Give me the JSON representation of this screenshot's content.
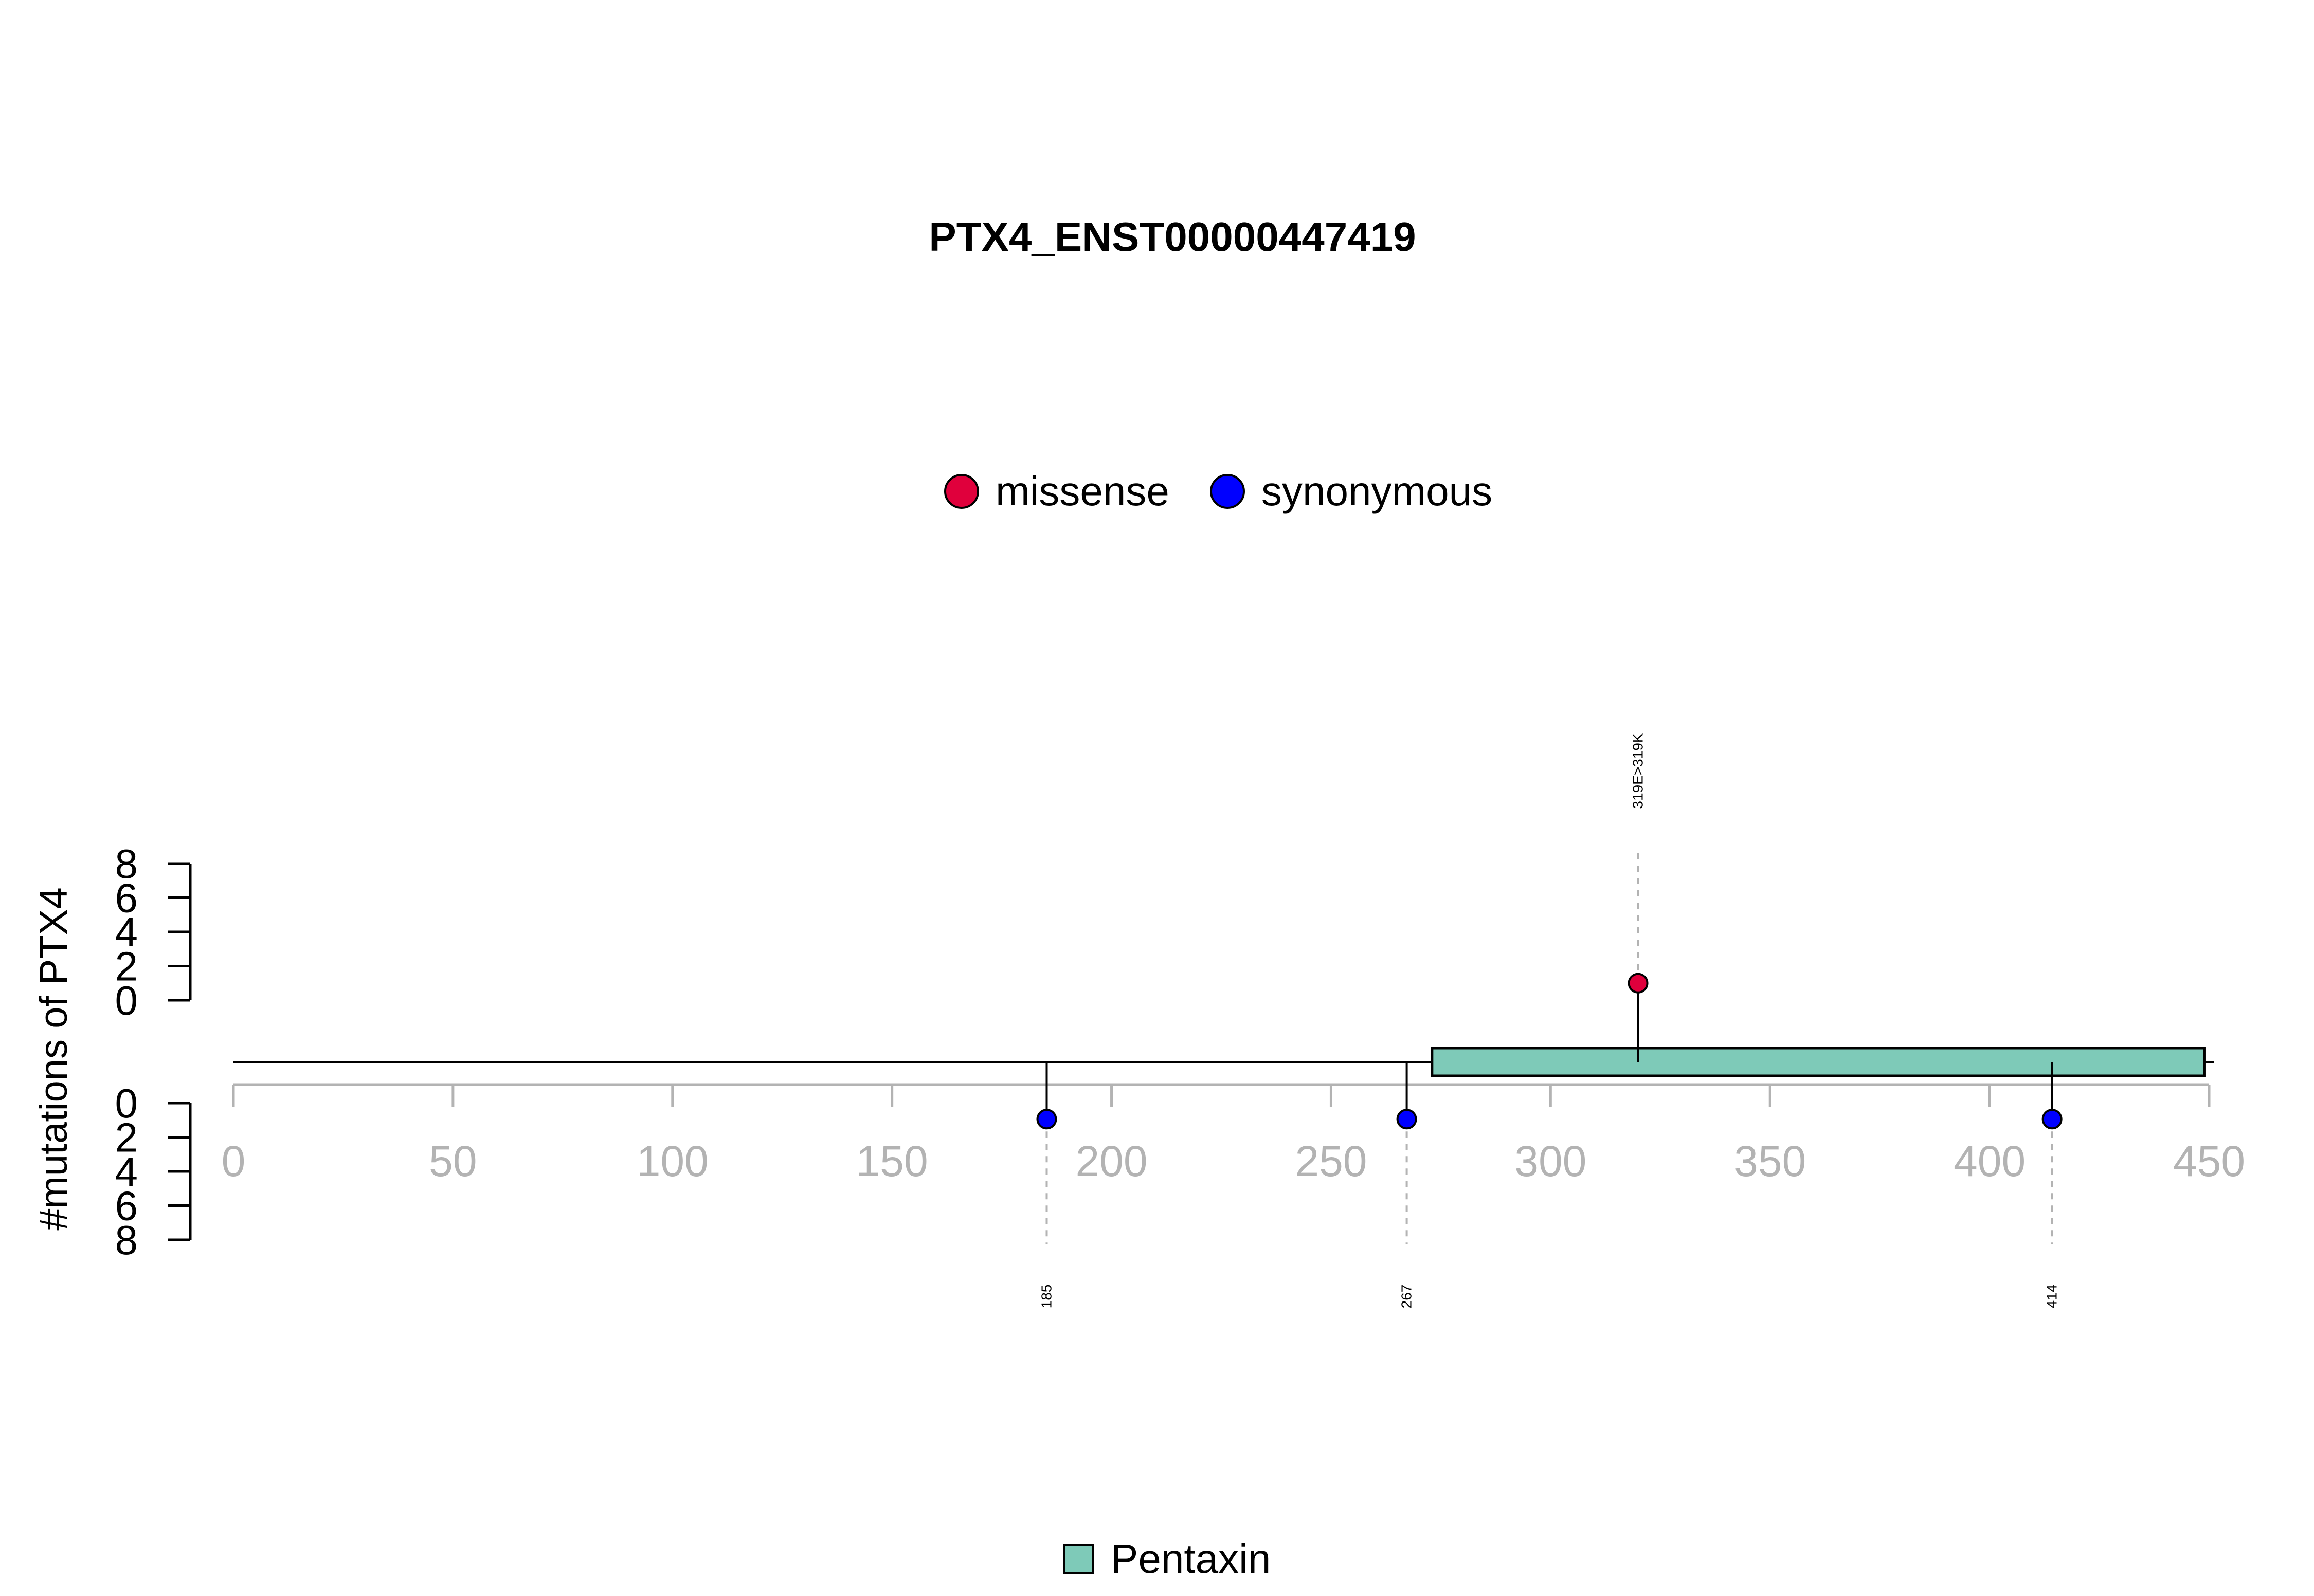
{
  "colors": {
    "missense": "#e0003c",
    "synonymous": "#0000ff",
    "domain": "#7ecab8",
    "backbone": "#000000",
    "axis": "#b3b3b3",
    "stem_dashed": "#b3b3b3"
  },
  "chart_data": {
    "type": "lollipop",
    "title": "PTX4_ENST00000447419",
    "ylabel": "#mutations of PTX4",
    "protein_length": 450,
    "x_axis": {
      "range": [
        0,
        450
      ],
      "ticks": [
        0,
        50,
        100,
        150,
        200,
        250,
        300,
        350,
        400,
        450
      ],
      "tick_labels": [
        "0",
        "50",
        "100",
        "150",
        "200",
        "250",
        "300",
        "350",
        "400",
        "450"
      ]
    },
    "y_axis_top": {
      "range": [
        0,
        8
      ],
      "ticks": [
        0,
        2,
        4,
        6,
        8
      ],
      "tick_labels": [
        "0",
        "2",
        "4",
        "6",
        "8"
      ]
    },
    "y_axis_bottom": {
      "range": [
        0,
        8
      ],
      "ticks": [
        0,
        2,
        4,
        6,
        8
      ],
      "tick_labels": [
        "0",
        "2",
        "4",
        "6",
        "8"
      ]
    },
    "legend_top": [
      {
        "label": "missense",
        "color_key": "missense"
      },
      {
        "label": "synonymous",
        "color_key": "synonymous"
      }
    ],
    "legend_bottom": [
      {
        "label": "Pentaxin",
        "color_key": "domain"
      }
    ],
    "domains": [
      {
        "name": "Pentaxin",
        "start": 273,
        "end": 449
      }
    ],
    "mutations_top": [
      {
        "position": 319,
        "count": 1,
        "type": "missense",
        "label": "319E>319K"
      }
    ],
    "mutations_bottom": [
      {
        "position": 185,
        "count": 1,
        "type": "synonymous",
        "label": "185"
      },
      {
        "position": 267,
        "count": 1,
        "type": "synonymous",
        "label": "267"
      },
      {
        "position": 414,
        "count": 1,
        "type": "synonymous",
        "label": "414"
      }
    ]
  }
}
